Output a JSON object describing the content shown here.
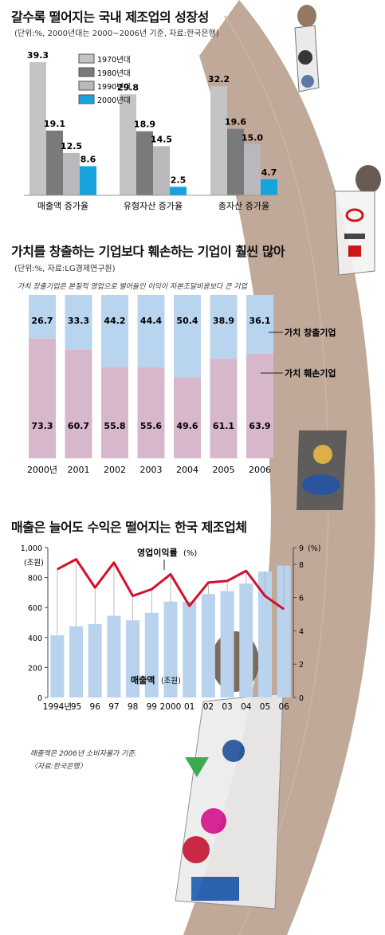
{
  "colors": {
    "bar_1970": "#c4c4c4",
    "bar_1980": "#7a7a7a",
    "bar_1990": "#b9b9bd",
    "bar_2000": "#17a3dd",
    "value_blue": "#b9d4ee",
    "value_pink": "#d7b7cc",
    "sales_bar": "#b9d3ef",
    "profit_line": "#d4102a",
    "track": "#b59a86"
  },
  "chart1": {
    "title": "갈수록 떨어지는 국내 제조업의 성장성",
    "source": "(단위:%, 2000년대는 2000~2006년 기준, 자료:한국은행)"
  },
  "chart2": {
    "title": "가치를 창출하는 기업보다 훼손하는 기업이 훨씬 많아",
    "source": "(단위:%, 자료:LG경제연구원)",
    "note": "가치 창출기업은 본질적 영업으로 벌어들인 이익이 자본조달비용보다 큰 기업"
  },
  "chart3": {
    "title": "매출은 늘어도 수익은 떨어지는 한국 제조업체",
    "footnote1": "매출액은 2006년 소비자물가 기준.",
    "footnote2": "〈자료:한국은행〉"
  },
  "icons": [
    "runner-figures-illustration",
    "running-track-illustration"
  ],
  "chart_data": [
    {
      "type": "bar",
      "title": "갈수록 떨어지는 국내 제조업의 성장성",
      "categories": [
        "매출액 증가율",
        "유형자산 증가율",
        "총자산 증가율"
      ],
      "series": [
        {
          "name": "1970년대",
          "values": [
            39.3,
            29.8,
            32.2
          ]
        },
        {
          "name": "1980년대",
          "values": [
            19.1,
            18.9,
            19.6
          ]
        },
        {
          "name": "1990년대",
          "values": [
            12.5,
            14.5,
            15.0
          ]
        },
        {
          "name": "2000년대",
          "values": [
            8.6,
            2.5,
            4.7
          ]
        }
      ],
      "value_labels": [
        [
          "39.3",
          "19.1",
          "12.5",
          "8.6"
        ],
        [
          "29.8",
          "18.9",
          "14.5",
          "2.5"
        ],
        [
          "32.2",
          "19.6",
          "15.0",
          "4.7"
        ]
      ],
      "ylim": [
        0,
        40
      ],
      "legend": "top-right"
    },
    {
      "type": "bar",
      "title": "가치를 창출하는 기업보다 훼손하는 기업이 훨씬 많아",
      "stacked": true,
      "categories": [
        "2000년",
        "2001",
        "2002",
        "2003",
        "2004",
        "2005",
        "2006"
      ],
      "series": [
        {
          "name": "가치 창출기업",
          "values": [
            26.7,
            33.3,
            44.2,
            44.4,
            50.4,
            38.9,
            36.1
          ]
        },
        {
          "name": "가치 훼손기업",
          "values": [
            73.3,
            60.7,
            55.8,
            55.6,
            49.6,
            61.1,
            63.9
          ]
        }
      ],
      "ylim": [
        0,
        100
      ],
      "legend": "right"
    },
    {
      "type": "bar",
      "title": "매출은 늘어도 수익은 떨어지는 한국 제조업체",
      "categories": [
        "1994년",
        "95",
        "96",
        "97",
        "98",
        "99",
        "2000",
        "01",
        "02",
        "03",
        "04",
        "05",
        "06"
      ],
      "series": [
        {
          "name": "매출액",
          "unit": "조원",
          "type": "bar",
          "axis": "left",
          "values": [
            415,
            475,
            490,
            545,
            515,
            565,
            640,
            640,
            690,
            710,
            760,
            840,
            880
          ]
        },
        {
          "name": "영업이익률",
          "unit": "%",
          "type": "line",
          "axis": "right",
          "values": [
            7.7,
            8.3,
            6.6,
            8.1,
            6.1,
            6.5,
            7.4,
            5.5,
            6.9,
            7.0,
            7.6,
            6.1,
            5.3
          ]
        }
      ],
      "left_axis": {
        "label": "(조원)",
        "ticks": [
          "0",
          "200",
          "400",
          "600",
          "800",
          "1,000"
        ],
        "ylim": [
          0,
          1000
        ]
      },
      "right_axis": {
        "label": "(%)",
        "ticks": [
          "0",
          "2",
          "4",
          "6",
          "8",
          "9"
        ],
        "ylim": [
          0,
          9
        ]
      },
      "series_labels": {
        "line": "영업이익률",
        "line_unit": "(%)",
        "bar": "매출액",
        "bar_unit": "(조원)"
      }
    }
  ]
}
